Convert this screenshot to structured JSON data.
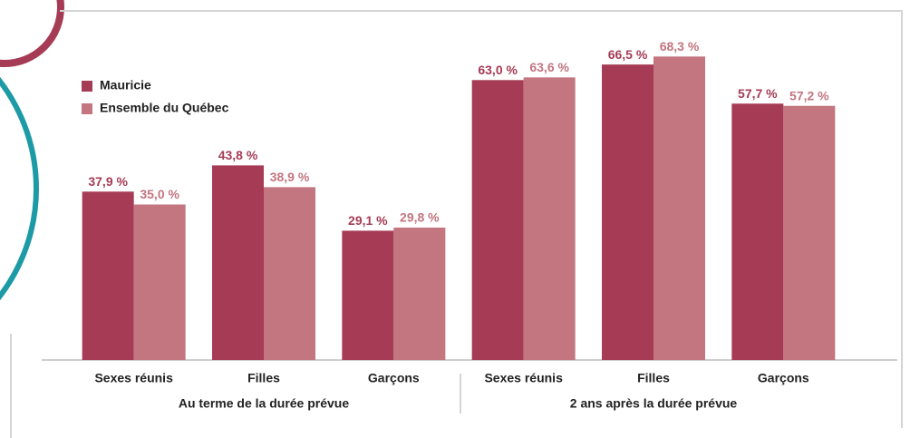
{
  "chart_data": {
    "type": "bar",
    "categories": [
      "Sexes réunis",
      "Filles",
      "Garçons",
      "Sexes réunis",
      "Filles",
      "Garçons"
    ],
    "groups": [
      "Au terme de la durée prévue",
      "2 ans après la durée prévue"
    ],
    "series": [
      {
        "name": "Mauricie",
        "color": "#a63b55",
        "values": [
          37.9,
          43.8,
          29.1,
          63.0,
          66.5,
          57.7
        ],
        "value_labels": [
          "37,9 %",
          "43,8 %",
          "29,1 %",
          "63,0 %",
          "66,5 %",
          "57,7 %"
        ]
      },
      {
        "name": "Ensemble du Québec",
        "color": "#c37580",
        "values": [
          35.0,
          38.9,
          29.8,
          63.6,
          68.3,
          57.2
        ],
        "value_labels": [
          "35,0 %",
          "38,9 %",
          "29,8 %",
          "63,6 %",
          "68,3 %",
          "57,2 %"
        ]
      }
    ],
    "legend": "top-left"
  }
}
